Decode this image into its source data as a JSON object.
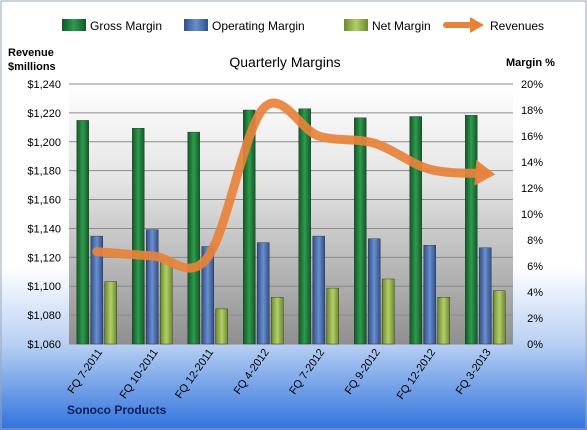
{
  "chart_data": {
    "type": "bar",
    "title": "Quarterly Margins",
    "source": "Sonoco Products",
    "left_axis_title": [
      "Revenue",
      "$millions"
    ],
    "right_axis_title": "Margin %",
    "categories": [
      "FQ 7-2011",
      "FQ 10-2011",
      "FQ 12-2011",
      "FQ 4-2012",
      "FQ 7-2012",
      "FQ 9-2012",
      "FQ 12-2012",
      "FQ 3-2013"
    ],
    "ylim_left": [
      1060,
      1240
    ],
    "left_ticks": [
      "$1,060",
      "$1,080",
      "$1,100",
      "$1,120",
      "$1,140",
      "$1,160",
      "$1,180",
      "$1,200",
      "$1,220",
      "$1,240"
    ],
    "ylim_right": [
      0,
      20
    ],
    "right_ticks": [
      "0%",
      "2%",
      "4%",
      "6%",
      "8%",
      "10%",
      "12%",
      "14%",
      "16%",
      "18%",
      "20%"
    ],
    "grid": true,
    "legend_position": "top",
    "series": [
      {
        "name": "Gross Margin",
        "type": "bar",
        "axis": "right",
        "color": "#1f7a3a",
        "values": [
          17.2,
          16.6,
          16.3,
          18.0,
          18.1,
          17.4,
          17.5,
          17.6
        ]
      },
      {
        "name": "Operating Margin",
        "type": "bar",
        "axis": "right",
        "color": "#4a6fb0",
        "values": [
          8.3,
          8.8,
          7.5,
          7.8,
          8.3,
          8.1,
          7.6,
          7.4
        ]
      },
      {
        "name": "Net Margin",
        "type": "bar",
        "axis": "right",
        "color": "#8fb34a",
        "values": [
          4.8,
          6.5,
          2.7,
          3.6,
          4.3,
          5.0,
          3.6,
          4.1
        ]
      },
      {
        "name": "Revenues",
        "type": "line",
        "axis": "left",
        "color": "#e8823a",
        "values": [
          1124,
          1121,
          1120,
          1223,
          1204,
          1199,
          1181,
          1178
        ]
      }
    ]
  }
}
